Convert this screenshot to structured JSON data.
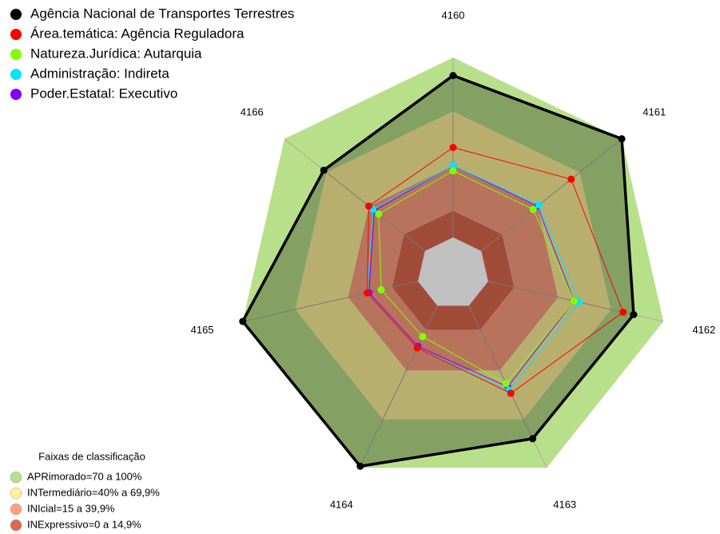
{
  "chart_data": {
    "type": "radar",
    "categories": [
      "4160",
      "4161",
      "4162",
      "4163",
      "4164",
      "4165",
      "4166"
    ],
    "rlim": [
      -20,
      100
    ],
    "series": [
      {
        "name": "Agência Nacional de Transportes Terrestres",
        "color": "#000000",
        "values": [
          90,
          100,
          83,
          82,
          99,
          100,
          72
        ]
      },
      {
        "name": "Área.temática: Agência Reguladora",
        "color": "#ff0000",
        "values": [
          50,
          64,
          77,
          54,
          26,
          29,
          40
        ]
      },
      {
        "name": "Natureza.Jurídica: Autarquia",
        "color": "#80ff00",
        "values": [
          37,
          37,
          49,
          48,
          19,
          21,
          33
        ]
      },
      {
        "name": "Administração: Indireta",
        "color": "#00e5ff",
        "values": [
          40,
          41,
          52,
          52,
          26,
          29,
          37
        ]
      },
      {
        "name": "Poder.Estatal: Executivo",
        "color": "#8000ff",
        "values": [
          40,
          40,
          49,
          50,
          25,
          28,
          36
        ]
      }
    ],
    "bands_title": "Faixas de classificação",
    "bands": [
      {
        "label": "APRimorado=70 a 100%",
        "color": "#b8e08a",
        "from": 70,
        "to": 100
      },
      {
        "label": "INTermediário=40% a 69,9%",
        "color": "#fff39a",
        "from": 40,
        "to": 69.9
      },
      {
        "label": "INIcial=15 a 39,9%",
        "color": "#ffa080",
        "from": 15,
        "to": 39.9
      },
      {
        "label": "INExpressivo=0 a 14,9%",
        "color": "#e06850",
        "from": 0,
        "to": 14.9
      }
    ]
  }
}
